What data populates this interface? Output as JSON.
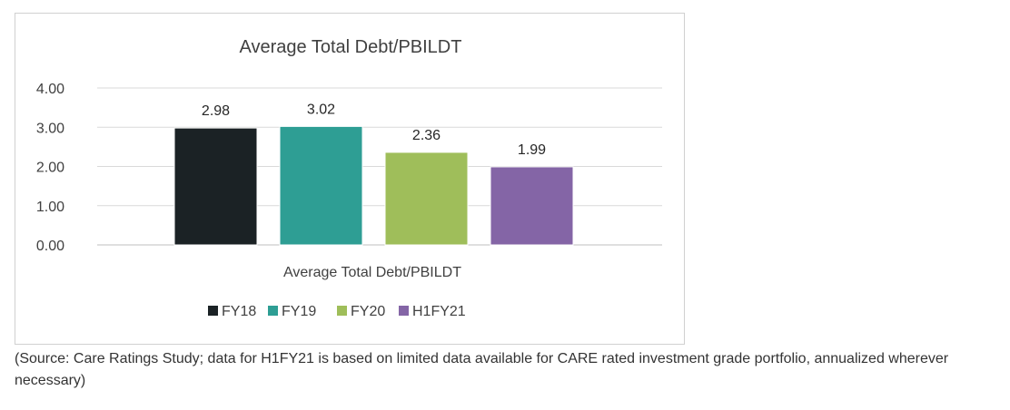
{
  "chart_data": {
    "type": "bar",
    "title": "Average Total Debt/PBILDT",
    "xlabel": "Average Total Debt/PBILDT",
    "ylabel": "",
    "ylim": [
      0,
      4
    ],
    "yticks": [
      0,
      1,
      2,
      3,
      4
    ],
    "ytick_labels": [
      "0.00",
      "1.00",
      "2.00",
      "3.00",
      "4.00"
    ],
    "grid": true,
    "legend": "bottom",
    "series": [
      {
        "name": "FY18",
        "value": 2.98,
        "label": "2.98",
        "color": "#1b2225"
      },
      {
        "name": "FY19",
        "value": 3.02,
        "label": "3.02",
        "color": "#2e9e94"
      },
      {
        "name": "FY20",
        "value": 2.36,
        "label": "2.36",
        "color": "#9fbe5a"
      },
      {
        "name": "H1FY21",
        "value": 1.99,
        "label": "1.99",
        "color": "#8465a6"
      }
    ]
  },
  "note": "(Source: Care Ratings Study; data for H1FY21 is based on limited data available for CARE rated investment grade portfolio, annualized wherever necessary)"
}
